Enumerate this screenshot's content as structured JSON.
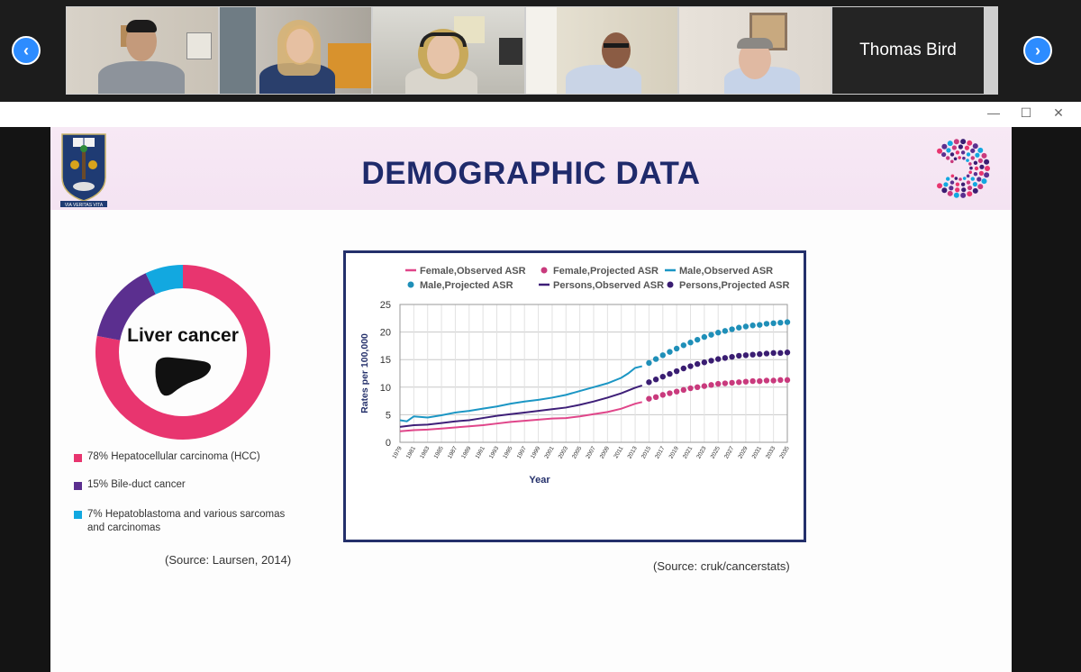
{
  "meeting": {
    "participants": [
      {
        "name": ""
      },
      {
        "name": ""
      },
      {
        "name": ""
      },
      {
        "name": ""
      },
      {
        "name": ""
      },
      {
        "name": "Thomas Bird"
      }
    ],
    "prev_icon": "chevron-left-icon",
    "next_icon": "chevron-right-icon",
    "accent": "#2d8cff"
  },
  "window": {
    "minimize": "—",
    "maximize": "☐",
    "close": "✕"
  },
  "slide": {
    "title": "DEMOGRAPHIC DATA",
    "crest_motto": "VIA VERITAS VITA",
    "donut": {
      "label": "Liver cancer",
      "segments": [
        {
          "text": "78% Hepatocellular carcinoma (HCC)",
          "percent": 78,
          "color": "#e8356f"
        },
        {
          "text": "15% Bile-duct cancer",
          "percent": 15,
          "color": "#5b2f8f"
        },
        {
          "text": "7% Hepatoblastoma and various sarcomas and carcinomas",
          "percent": 7,
          "color": "#12a8e0"
        }
      ],
      "source": "(Source: Laursen, 2014)"
    },
    "chart_source": "(Source: cruk/cancerstats)"
  },
  "chart_data": {
    "type": "line",
    "xlabel": "Year",
    "ylabel": "Rates per 100,000",
    "ylim": [
      0,
      25
    ],
    "yticks": [
      "0",
      "5",
      "10",
      "15",
      "20",
      "25"
    ],
    "xticks": [
      "1979",
      "1981",
      "1983",
      "1985",
      "1987",
      "1989",
      "1991",
      "1993",
      "1995",
      "1997",
      "1999",
      "2001",
      "2003",
      "2005",
      "2007",
      "2009",
      "2011",
      "2013",
      "2015",
      "2017",
      "2019",
      "2021",
      "2023",
      "2025",
      "2027",
      "2029",
      "2031",
      "2033",
      "2035"
    ],
    "grid": true,
    "legend_position": "top",
    "series": [
      {
        "name": "Female,Observed ASR",
        "style": "line",
        "color": "#e0468a",
        "x": [
          1979,
          1981,
          1983,
          1985,
          1987,
          1989,
          1991,
          1993,
          1995,
          1997,
          1999,
          2001,
          2003,
          2005,
          2007,
          2009,
          2011,
          2013,
          2014
        ],
        "y": [
          2.0,
          2.2,
          2.3,
          2.5,
          2.7,
          2.9,
          3.1,
          3.4,
          3.7,
          3.9,
          4.1,
          4.3,
          4.4,
          4.7,
          5.1,
          5.5,
          6.1,
          7.0,
          7.3
        ]
      },
      {
        "name": "Female,Projected ASR",
        "style": "dots",
        "color": "#c93a7d",
        "x": [
          2015,
          2016,
          2017,
          2018,
          2019,
          2020,
          2021,
          2022,
          2023,
          2024,
          2025,
          2026,
          2027,
          2028,
          2029,
          2030,
          2031,
          2032,
          2033,
          2034,
          2035
        ],
        "y": [
          7.9,
          8.2,
          8.6,
          8.9,
          9.2,
          9.5,
          9.8,
          10.0,
          10.2,
          10.4,
          10.6,
          10.7,
          10.8,
          10.9,
          11.0,
          11.1,
          11.1,
          11.2,
          11.2,
          11.3,
          11.3
        ]
      },
      {
        "name": "Male,Observed ASR",
        "style": "line",
        "color": "#1b96c4",
        "x": [
          1979,
          1980,
          1981,
          1983,
          1985,
          1987,
          1989,
          1991,
          1993,
          1995,
          1997,
          1999,
          2001,
          2003,
          2005,
          2007,
          2009,
          2011,
          2012,
          2013,
          2014
        ],
        "y": [
          4.0,
          3.8,
          4.7,
          4.5,
          4.9,
          5.4,
          5.7,
          6.1,
          6.5,
          7.0,
          7.4,
          7.7,
          8.1,
          8.6,
          9.3,
          10.0,
          10.7,
          11.7,
          12.5,
          13.5,
          13.8
        ]
      },
      {
        "name": "Male,Projected ASR",
        "style": "dots",
        "color": "#1f8fb8",
        "x": [
          2015,
          2016,
          2017,
          2018,
          2019,
          2020,
          2021,
          2022,
          2023,
          2024,
          2025,
          2026,
          2027,
          2028,
          2029,
          2030,
          2031,
          2032,
          2033,
          2034,
          2035
        ],
        "y": [
          14.4,
          15.1,
          15.8,
          16.4,
          17.0,
          17.6,
          18.1,
          18.6,
          19.1,
          19.5,
          19.9,
          20.2,
          20.5,
          20.8,
          21.0,
          21.2,
          21.3,
          21.5,
          21.6,
          21.7,
          21.8
        ]
      },
      {
        "name": "Persons,Observed ASR",
        "style": "line",
        "color": "#3e1f78",
        "x": [
          1979,
          1981,
          1983,
          1985,
          1987,
          1989,
          1991,
          1993,
          1995,
          1997,
          1999,
          2001,
          2003,
          2005,
          2007,
          2009,
          2011,
          2013,
          2014
        ],
        "y": [
          2.8,
          3.1,
          3.2,
          3.5,
          3.8,
          4.0,
          4.4,
          4.8,
          5.1,
          5.4,
          5.7,
          6.0,
          6.3,
          6.8,
          7.4,
          8.1,
          8.9,
          9.9,
          10.3
        ]
      },
      {
        "name": "Persons,Projected ASR",
        "style": "dots",
        "color": "#3a1d72",
        "x": [
          2015,
          2016,
          2017,
          2018,
          2019,
          2020,
          2021,
          2022,
          2023,
          2024,
          2025,
          2026,
          2027,
          2028,
          2029,
          2030,
          2031,
          2032,
          2033,
          2034,
          2035
        ],
        "y": [
          10.9,
          11.4,
          11.9,
          12.4,
          12.9,
          13.4,
          13.8,
          14.2,
          14.5,
          14.8,
          15.1,
          15.3,
          15.5,
          15.7,
          15.8,
          15.9,
          16.0,
          16.1,
          16.2,
          16.2,
          16.3
        ]
      }
    ]
  }
}
